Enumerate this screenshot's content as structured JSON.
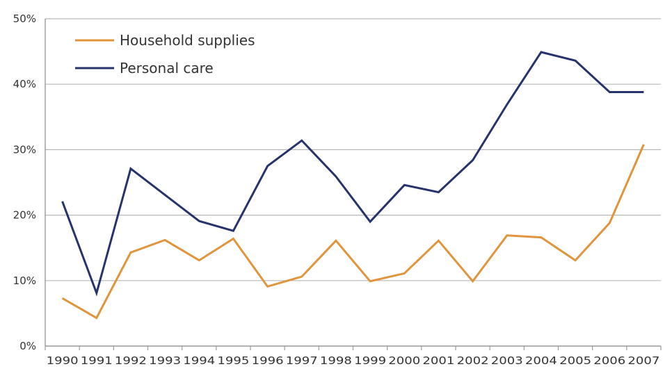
{
  "chart_data": {
    "type": "line",
    "title": "",
    "xlabel": "",
    "ylabel": "",
    "categories": [
      "1990",
      "1991",
      "1992",
      "1993",
      "1994",
      "1995",
      "1996",
      "1997",
      "1998",
      "1999",
      "2000",
      "2001",
      "2002",
      "2003",
      "2004",
      "2005",
      "2006",
      "2007"
    ],
    "ylim": [
      0,
      50
    ],
    "yticks": [
      "0%",
      "10%",
      "20%",
      "30%",
      "40%",
      "50%"
    ],
    "grid": "horizontal",
    "legend_position": "top-left",
    "series": [
      {
        "name": "Household supplies",
        "color": "#e0953c",
        "values": [
          7.3,
          4.3,
          14.3,
          16.2,
          13.1,
          16.4,
          9.1,
          10.6,
          16.1,
          9.9,
          11.1,
          16.1,
          9.9,
          16.9,
          16.6,
          13.1,
          18.8,
          30.8
        ]
      },
      {
        "name": "Personal care",
        "color": "#27346b",
        "values": [
          22.1,
          8.1,
          27.1,
          23.1,
          19.1,
          17.6,
          27.5,
          31.4,
          25.9,
          19.0,
          24.6,
          23.5,
          28.4,
          36.9,
          44.9,
          43.6,
          38.8,
          38.8
        ]
      }
    ]
  }
}
